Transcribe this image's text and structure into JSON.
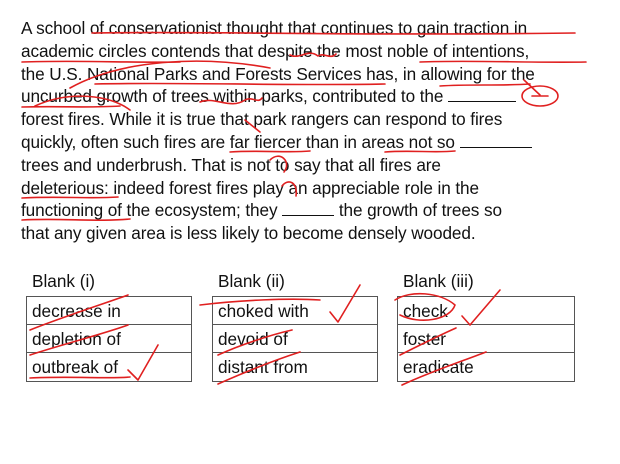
{
  "passage": {
    "lines": [
      [
        "A school of conservationist thought that continues to gain traction in"
      ],
      [
        "academic circles contends that despite the most noble of intentions,"
      ],
      [
        "the U.S. National Parks and Forests Services has, in allowing for the"
      ],
      [
        "uncurbed growth of trees within parks, contributed to the ",
        "",
        ""
      ],
      [
        "forest fires. While it is true that park rangers can respond to fires"
      ],
      [
        "quickly, often such fires are far fiercer than in areas not so ",
        "",
        ""
      ],
      [
        "trees and underbrush.  That is not to say that all fires are"
      ],
      [
        "deleterious: indeed forest fires play an appreciable role in the"
      ],
      [
        "functioning of the ecosystem; they ",
        "",
        " the growth of trees so"
      ],
      [
        "that any given area is less likely to become densely wooded."
      ]
    ]
  },
  "blanks": [
    {
      "header": "Blank (i)",
      "options": [
        "decrease in",
        "depletion of",
        "outbreak of"
      ]
    },
    {
      "header": "Blank (ii)",
      "options": [
        "choked with",
        "devoid of",
        "distant from"
      ]
    },
    {
      "header": "Blank (iii)",
      "options": [
        "check",
        "foster",
        "eradicate"
      ]
    }
  ],
  "annotations": {
    "ink_color": "#e02020"
  }
}
